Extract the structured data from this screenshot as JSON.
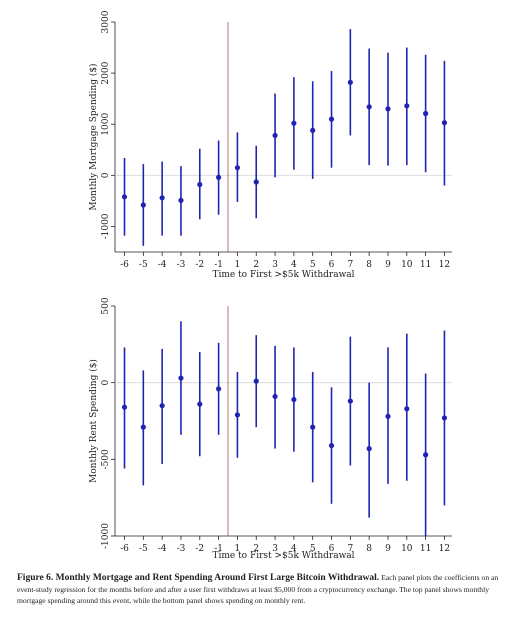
{
  "chart_data": [
    {
      "type": "scatter",
      "error_bars": true,
      "x": [
        -6,
        -5,
        -4,
        -3,
        -2,
        -1,
        1,
        2,
        3,
        4,
        5,
        6,
        7,
        8,
        9,
        10,
        11,
        12
      ],
      "series": [
        {
          "values": [
            -420,
            -580,
            -440,
            -490,
            -180,
            -40,
            150,
            -130,
            780,
            1020,
            880,
            1100,
            1820,
            1340,
            1300,
            1360,
            1210,
            1030
          ],
          "ci_low": [
            -1180,
            -1380,
            -1180,
            -1180,
            -860,
            -770,
            -520,
            -840,
            -40,
            110,
            -70,
            150,
            780,
            200,
            190,
            200,
            60,
            -200
          ],
          "ci_high": [
            340,
            220,
            270,
            180,
            520,
            680,
            840,
            580,
            1600,
            1920,
            1840,
            2040,
            2860,
            2480,
            2400,
            2500,
            2360,
            2240
          ]
        }
      ],
      "xlabel": "Time to First >$5k Withdrawal",
      "ylabel": "Monthly Mortgage Spending ($)",
      "ylim": [
        -1500,
        3000
      ],
      "yticks": [
        -1000,
        0,
        1000,
        2000,
        3000
      ],
      "xticks": [
        -6,
        -5,
        -4,
        -3,
        -2,
        -1,
        1,
        2,
        3,
        4,
        5,
        6,
        7,
        8,
        9,
        10,
        11,
        12
      ],
      "event_line": 0,
      "zero_line": 0,
      "grid": false,
      "colors": {
        "marker": "#1f24b3",
        "event_line": "#a05050",
        "zero_line": "#d8d8d8"
      }
    },
    {
      "type": "scatter",
      "error_bars": true,
      "x": [
        -6,
        -5,
        -4,
        -3,
        -2,
        -1,
        1,
        2,
        3,
        4,
        5,
        6,
        7,
        8,
        9,
        10,
        11,
        12
      ],
      "series": [
        {
          "values": [
            -160,
            -290,
            -150,
            30,
            -140,
            -40,
            -210,
            10,
            -90,
            -110,
            -290,
            -410,
            -120,
            -430,
            -220,
            -170,
            -470,
            -230
          ],
          "ci_low": [
            -560,
            -670,
            -530,
            -340,
            -480,
            -340,
            -490,
            -290,
            -430,
            -450,
            -650,
            -790,
            -540,
            -880,
            -660,
            -640,
            -1000,
            -800
          ],
          "ci_high": [
            230,
            80,
            220,
            400,
            200,
            260,
            70,
            310,
            240,
            230,
            70,
            -30,
            300,
            0,
            230,
            320,
            60,
            340
          ]
        }
      ],
      "xlabel": "Time to First >$5k Withdrawal",
      "ylabel": "Monthly Rent Spending ($)",
      "ylim": [
        -1000,
        500
      ],
      "yticks": [
        -1000,
        -500,
        0,
        500
      ],
      "xticks": [
        -6,
        -5,
        -4,
        -3,
        -2,
        -1,
        1,
        2,
        3,
        4,
        5,
        6,
        7,
        8,
        9,
        10,
        11,
        12
      ],
      "event_line": 0,
      "zero_line": 0,
      "grid": false,
      "colors": {
        "marker": "#1f24b3",
        "event_line": "#a05050",
        "zero_line": "#d8d8d8"
      }
    }
  ],
  "caption": {
    "label": "Figure 6. Monthly Mortgage and Rent Spending Around First Large Bitcoin Withdrawal.",
    "text": "Each panel plots the coefficients on an event-study regression for the months before and after a user first withdraws at least $5,000 from a cryptocurrency exchange. The top panel shows monthly mortgage spending around this event, while the bottom panel shows spending on monthly rent."
  }
}
